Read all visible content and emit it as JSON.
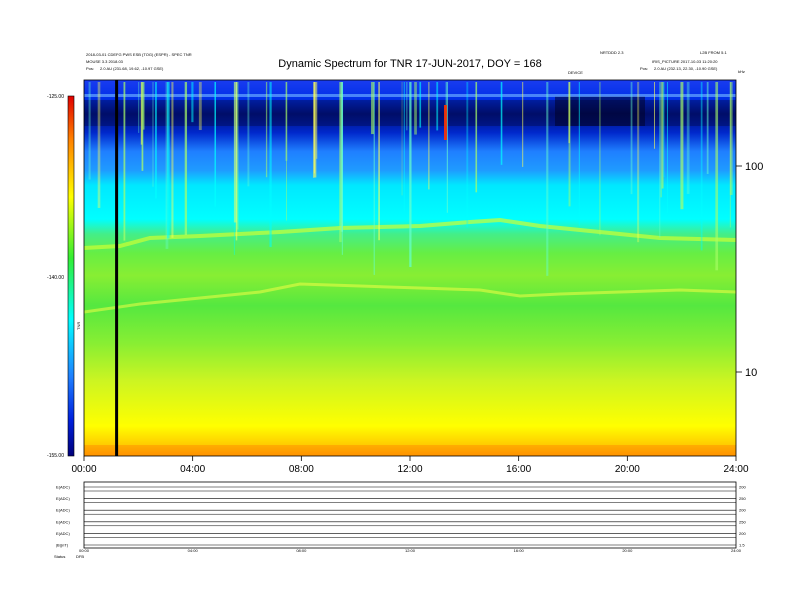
{
  "header": {
    "left_line1": "2018-03-01 CDEFG PWS ESB (TOG) (ESPR) - SPEC TNR",
    "left_line2": "MOUSE 3.3 2018.03",
    "left_line3_label": "Pos:",
    "left_line3_value": "2.0 AU (231.68, 19.62, -10.97 GSE)",
    "center_small": "DEVICE",
    "right_line1_a": "NRTDDD 2.3",
    "right_line1_b": "L2B FROM 5.1",
    "right_line2": "IRIS_PICTURE 2017-10-03 11:20:20",
    "right_line3_label": "Pos:",
    "right_line3_value": "2.0 AU (232.13, 22.30, -10.90 GSE)"
  },
  "chart_data": {
    "type": "heatmap",
    "title": "Dynamic Spectrum for TNR 17-JUN-2017, DOY = 168",
    "x_tick_labels": [
      "00:00",
      "04:00",
      "08:00",
      "12:00",
      "16:00",
      "20:00",
      "24:00"
    ],
    "x_range_hours": [
      0,
      24
    ],
    "y_right_tick_labels": [
      "100",
      "10"
    ],
    "y_right_unit": "kHz",
    "y_scale": "log",
    "colorbar_label": "TNR",
    "colorbar_tick_labels": [
      "-125.00",
      "-140.00",
      "-155.00"
    ],
    "colorbar_range": [
      -155,
      -125
    ],
    "colors": {
      "dark_blue": "#00007a",
      "blue": "#0033ee",
      "light_blue": "#1f7fff",
      "cyan": "#00ffff",
      "green": "#33ee33",
      "yellow": "#ffff00",
      "orange": "#ff8000",
      "red": "#e00000"
    },
    "vertical_marker_hour": 1.2
  },
  "subpanels": {
    "labels": [
      "E(ADC)",
      "E(ADC)",
      "E(ADC)",
      "E(ADC)",
      "E(ADC)",
      "|B|(nT)"
    ],
    "right_values": [
      "200",
      "250",
      "200",
      "250",
      "200",
      "1.5"
    ],
    "x_tick_labels": [
      "00:00",
      "04:00",
      "08:00",
      "12:00",
      "16:00",
      "20:00",
      "24:00"
    ],
    "footer_label": "Status",
    "footer_value": "DFB"
  }
}
